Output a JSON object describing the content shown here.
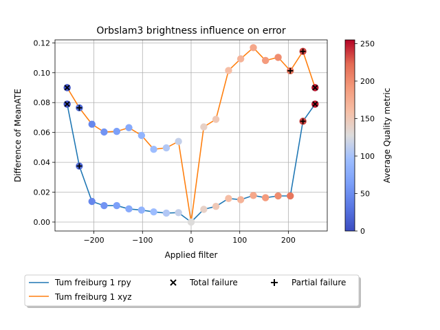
{
  "chart_data": {
    "type": "line",
    "title": "Orbslam3 brightness influence on error",
    "xlabel": "Applied filter",
    "ylabel": "Difference of MeanATE",
    "xlim": [
      -280,
      280
    ],
    "ylim": [
      -0.006,
      0.122
    ],
    "xticks": [
      -200,
      -100,
      0,
      100,
      200
    ],
    "xtick_labels": [
      "−200",
      "−100",
      "0",
      "100",
      "200"
    ],
    "yticks": [
      0.0,
      0.02,
      0.04,
      0.06,
      0.08,
      0.1,
      0.12
    ],
    "ytick_labels": [
      "0.00",
      "0.02",
      "0.04",
      "0.06",
      "0.08",
      "0.10",
      "0.12"
    ],
    "grid": true,
    "legend_position": "bottom",
    "colorbar": {
      "label": "Average Quality metric",
      "range": [
        0,
        255
      ],
      "ticks": [
        0,
        50,
        100,
        150,
        200,
        250
      ],
      "colormap": "coolwarm"
    },
    "series": [
      {
        "name": "Tum freiburg 1 rpy",
        "color": "#1f77b4",
        "x": [
          -255,
          -230,
          -204,
          -179,
          -153,
          -128,
          -102,
          -77,
          -51,
          -26,
          0,
          26,
          51,
          77,
          102,
          128,
          153,
          179,
          204,
          230,
          255
        ],
        "y": [
          0.079,
          0.0375,
          0.0138,
          0.011,
          0.011,
          0.0088,
          0.008,
          0.0068,
          0.006,
          0.0063,
          0.0,
          0.0085,
          0.0105,
          0.0158,
          0.015,
          0.0178,
          0.0163,
          0.0175,
          0.0175,
          0.0675,
          0.079
        ],
        "quality": [
          5,
          25,
          45,
          55,
          65,
          75,
          85,
          95,
          105,
          115,
          128,
          140,
          150,
          160,
          170,
          180,
          190,
          200,
          215,
          235,
          250
        ]
      },
      {
        "name": "Tum freiburg 1 xyz",
        "color": "#ff7f0e",
        "x": [
          -255,
          -230,
          -204,
          -179,
          -153,
          -128,
          -102,
          -77,
          -51,
          -26,
          0,
          26,
          51,
          77,
          102,
          128,
          153,
          179,
          204,
          230,
          255
        ],
        "y": [
          0.09,
          0.0765,
          0.0655,
          0.0603,
          0.0607,
          0.0632,
          0.058,
          0.0487,
          0.0497,
          0.054,
          0.0,
          0.0637,
          0.0688,
          0.1015,
          0.1093,
          0.1168,
          0.1082,
          0.1103,
          0.1013,
          0.1143,
          0.09
        ],
        "quality": [
          5,
          25,
          45,
          55,
          65,
          75,
          85,
          95,
          105,
          115,
          128,
          140,
          150,
          160,
          170,
          180,
          190,
          200,
          215,
          235,
          250
        ]
      }
    ],
    "total_failure": [
      {
        "x": -255,
        "y": 0.09
      },
      {
        "x": -255,
        "y": 0.079
      },
      {
        "x": 255,
        "y": 0.09
      },
      {
        "x": 255,
        "y": 0.079
      }
    ],
    "partial_failure": [
      {
        "x": -230,
        "y": 0.0765
      },
      {
        "x": -230,
        "y": 0.0375
      },
      {
        "x": 204,
        "y": 0.1013
      },
      {
        "x": 230,
        "y": 0.1143
      },
      {
        "x": 230,
        "y": 0.0675
      }
    ],
    "legend": {
      "total_failure_label": "Total failure",
      "partial_failure_label": "Partial failure"
    }
  }
}
